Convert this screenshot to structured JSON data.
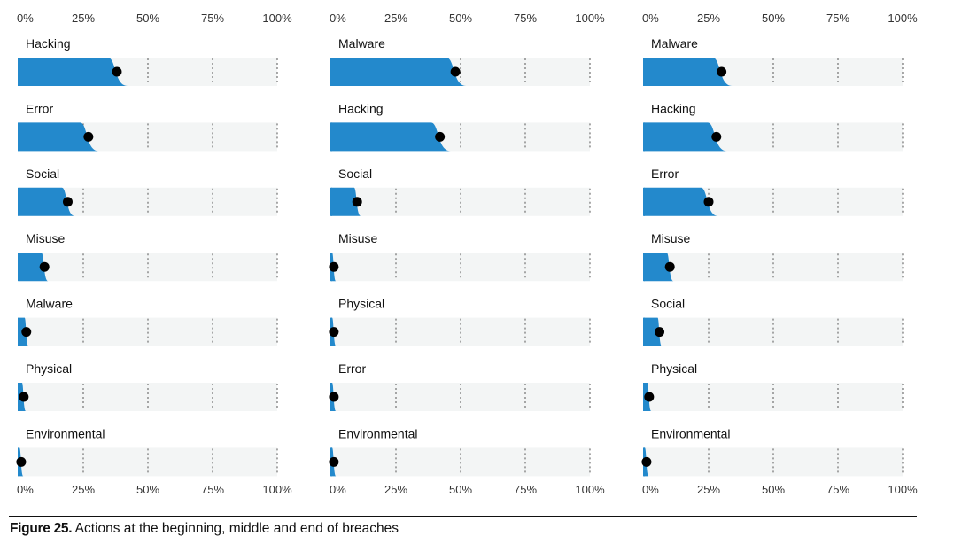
{
  "caption": {
    "figure_label": "Figure 25.",
    "text": " Actions at the beginning, middle and end of breaches"
  },
  "colors": {
    "fill": "#2389cc",
    "track": "#f3f5f5",
    "dot": "#000000",
    "grid": "#555555"
  },
  "chart_data": [
    {
      "type": "bar",
      "xlim": [
        0,
        100
      ],
      "x_ticks": [
        "0%",
        "25%",
        "50%",
        "75%",
        "100%"
      ],
      "categories": [
        "Hacking",
        "Error",
        "Social",
        "Misuse",
        "Malware",
        "Physical",
        "Environmental"
      ],
      "values": [
        38,
        27,
        19,
        10,
        3,
        2,
        1
      ]
    },
    {
      "type": "bar",
      "xlim": [
        0,
        100
      ],
      "x_ticks": [
        "0%",
        "25%",
        "50%",
        "75%",
        "100%"
      ],
      "categories": [
        "Malware",
        "Hacking",
        "Social",
        "Misuse",
        "Physical",
        "Error",
        "Environmental"
      ],
      "values": [
        48,
        42,
        10,
        1,
        1,
        1,
        1
      ]
    },
    {
      "type": "bar",
      "xlim": [
        0,
        100
      ],
      "x_ticks": [
        "0%",
        "25%",
        "50%",
        "75%",
        "100%"
      ],
      "categories": [
        "Malware",
        "Hacking",
        "Error",
        "Misuse",
        "Social",
        "Physical",
        "Environmental"
      ],
      "values": [
        30,
        28,
        25,
        10,
        6,
        2,
        1
      ]
    }
  ]
}
